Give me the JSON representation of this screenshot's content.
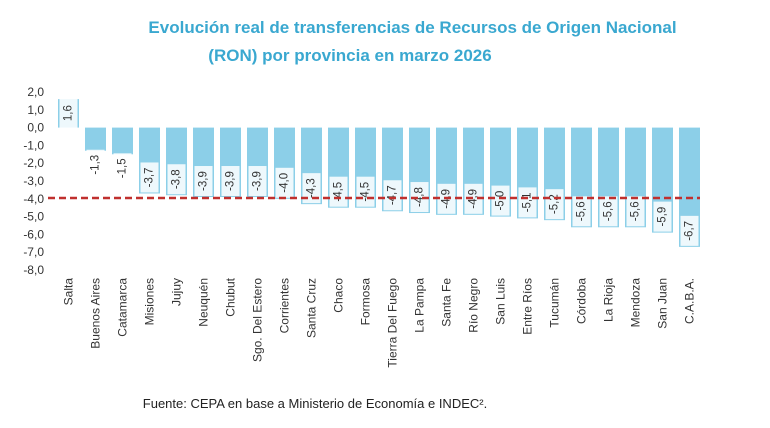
{
  "chart_data": {
    "type": "bar",
    "title_line1": "Evolución real de transferencias de Recursos de Origen Nacional",
    "title_line2": "(RON) por provincia en marzo 2026",
    "categories": [
      "Salta",
      "Buenos Aires",
      "Catamarca",
      "Misiones",
      "Jujuy",
      "Neuquén",
      "Chubut",
      "Sgo. Del Estero",
      "Corrientes",
      "Santa Cruz",
      "Chaco",
      "Formosa",
      "Tierra Del Fuego",
      "La Pampa",
      "Santa Fe",
      "Río Negro",
      "San Luis",
      "Entre Ríos",
      "Tucumán",
      "Córdoba",
      "La Rioja",
      "Mendoza",
      "San Juan",
      "C.A.B.A."
    ],
    "values": [
      1.6,
      -1.3,
      -1.5,
      -3.7,
      -3.8,
      -3.9,
      -3.9,
      -3.9,
      -4.0,
      -4.3,
      -4.5,
      -4.5,
      -4.7,
      -4.8,
      -4.9,
      -4.9,
      -5.0,
      -5.1,
      -5.2,
      -5.6,
      -5.6,
      -5.6,
      -5.9,
      -6.7
    ],
    "value_labels": [
      "1,6",
      "-1,3",
      "-1,5",
      "-3,7",
      "-3,8",
      "-3,9",
      "-3,9",
      "-3,9",
      "-4,0",
      "-4,3",
      "-4,5",
      "-4,5",
      "-4,7",
      "-4,8",
      "-4,9",
      "-4,9",
      "-5,0",
      "-5,1",
      "-5,2",
      "-5,6",
      "-5,6",
      "-5,6",
      "-5,9",
      "-6,7"
    ],
    "y_ticks": [
      "2,0",
      "1,0",
      "0,0",
      "-1,0",
      "-2,0",
      "-3,0",
      "-4,0",
      "-5,0",
      "-6,0",
      "-7,0",
      "-8,0"
    ],
    "ylim": [
      -8,
      2
    ],
    "average_line": -3.9,
    "bar_color": "#8ccfe8",
    "avg_line_color": "#c0302e",
    "label_bg": "#ffffff"
  },
  "source": "Fuente: CEPA en base a Ministerio de Economía e INDEC²."
}
